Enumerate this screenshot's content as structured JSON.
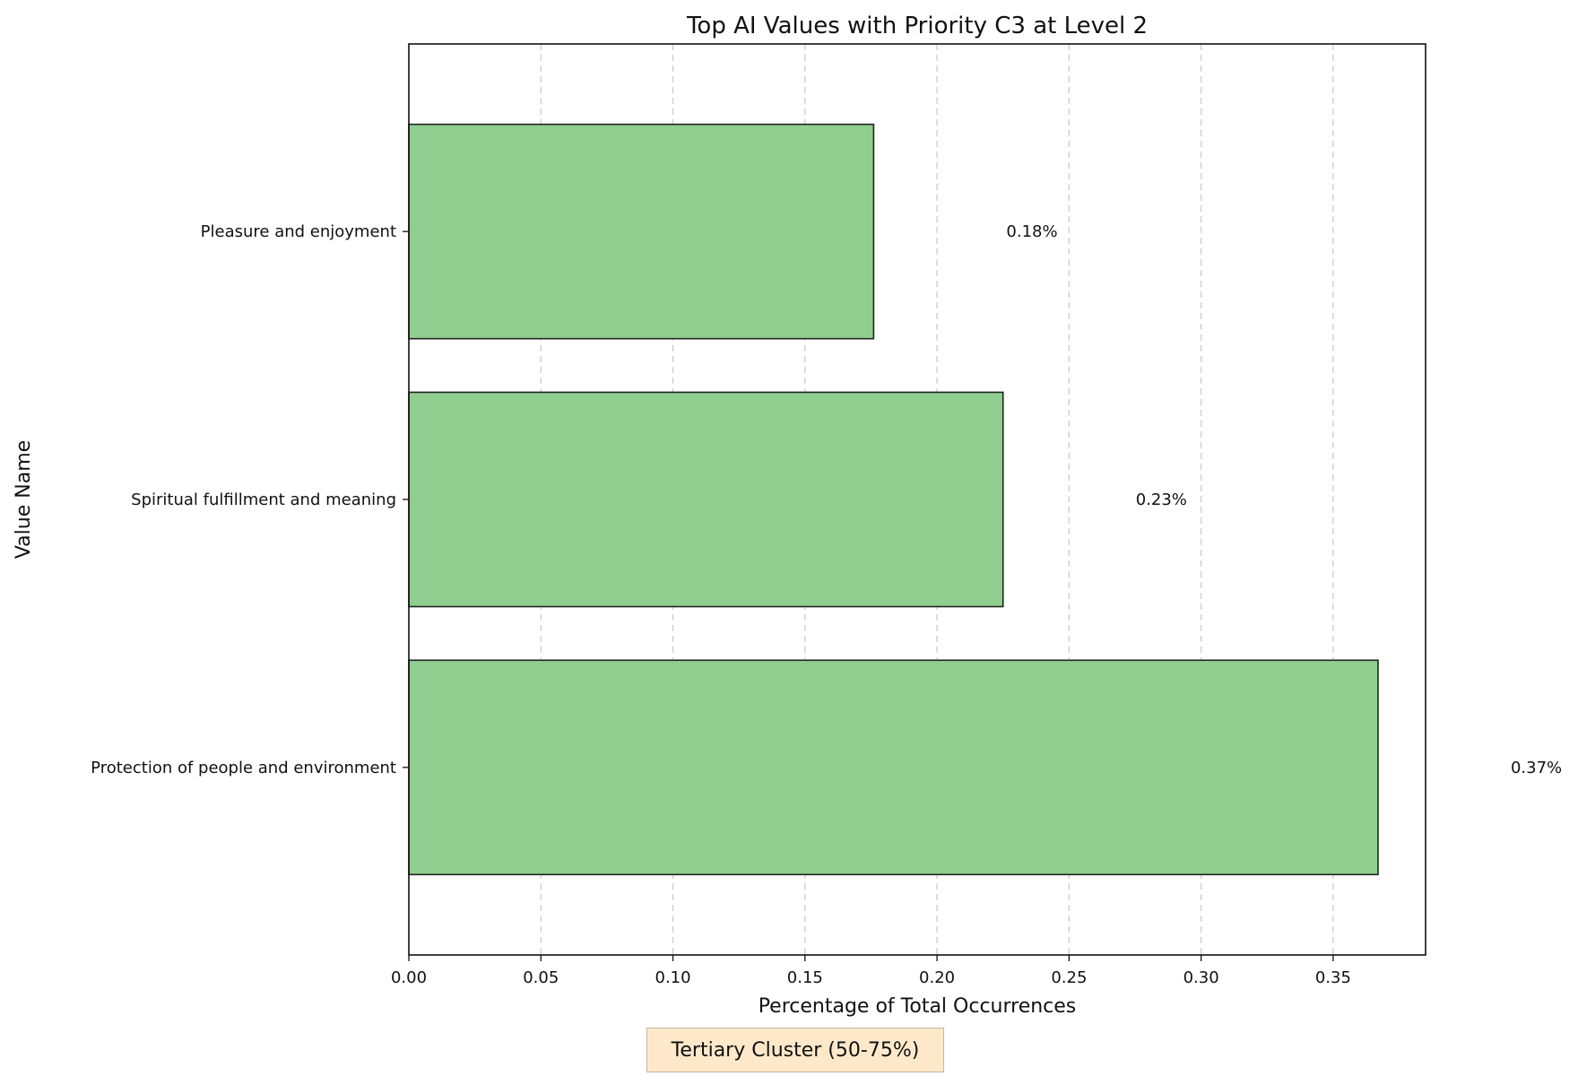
{
  "chart_data": {
    "type": "bar",
    "orientation": "horizontal",
    "title": "Top AI Values with Priority C3 at Level 2",
    "xlabel": "Percentage of Total Occurrences",
    "ylabel": "Value Name",
    "categories": [
      "Pleasure and enjoyment",
      "Spiritual fulfillment and meaning",
      "Protection of people and environment"
    ],
    "values": [
      0.176,
      0.225,
      0.367
    ],
    "value_labels": [
      "0.18%",
      "0.23%",
      "0.37%"
    ],
    "xlim": [
      0,
      0.385
    ],
    "xticks": [
      "0.00",
      "0.05",
      "0.10",
      "0.15",
      "0.20",
      "0.25",
      "0.30",
      "0.35"
    ],
    "grid": "x-dashed",
    "bar_color": "#8fce8f",
    "bar_edge_color": "#222222"
  },
  "annotation": {
    "cluster_label": "Tertiary Cluster (50-75%)",
    "background": "#fde9c9"
  }
}
